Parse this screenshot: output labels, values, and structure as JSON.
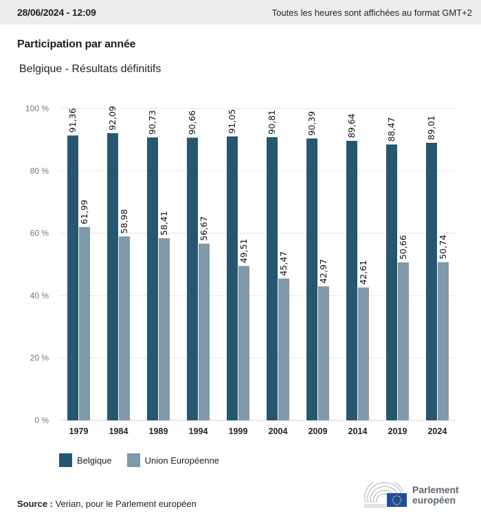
{
  "header": {
    "datetime": "28/06/2024 - 12:09",
    "timezone_note": "Toutes les heures sont affichées au format GMT+2"
  },
  "title": "Participation par année",
  "subtitle": "Belgique - Résultats définitifs",
  "colors": {
    "belgique": "#27566f",
    "ue": "#7f98aa",
    "grid": "#e6e6e6",
    "axis": "#cfd6dc",
    "header_bg": "#eceeed"
  },
  "chart_data": {
    "type": "bar",
    "title": "Participation par année",
    "subtitle": "Belgique - Résultats définitifs",
    "xlabel": "",
    "ylabel": "",
    "ylim": [
      0,
      100
    ],
    "yticks": [
      0,
      20,
      40,
      60,
      80,
      100
    ],
    "ytick_labels": [
      "0 %",
      "20 %",
      "40 %",
      "60 %",
      "80 %",
      "100 %"
    ],
    "grid": true,
    "legend_position": "bottom-left",
    "categories": [
      "1979",
      "1984",
      "1989",
      "1994",
      "1999",
      "2004",
      "2009",
      "2014",
      "2019",
      "2024"
    ],
    "series": [
      {
        "name": "Belgique",
        "color": "#27566f",
        "values": [
          91.36,
          92.09,
          90.73,
          90.66,
          91.05,
          90.81,
          90.39,
          89.64,
          88.47,
          89.01
        ],
        "labels": [
          "91,36",
          "92,09",
          "90,73",
          "90,66",
          "91,05",
          "90,81",
          "90,39",
          "89,64",
          "88,47",
          "89,01"
        ]
      },
      {
        "name": "Union Européenne",
        "color": "#7f98aa",
        "values": [
          61.99,
          58.98,
          58.41,
          56.67,
          49.51,
          45.47,
          42.97,
          42.61,
          50.66,
          50.74
        ],
        "labels": [
          "61,99",
          "58,98",
          "58,41",
          "56,67",
          "49,51",
          "45,47",
          "42,97",
          "42,61",
          "50,66",
          "50,74"
        ]
      }
    ]
  },
  "legend": [
    {
      "label": "Belgique"
    },
    {
      "label": "Union Européenne"
    }
  ],
  "footer": {
    "source_label": "Source :",
    "source_text": " Verian, pour le Parlement européen",
    "logo_line1": "Parlement",
    "logo_line2": "européen"
  }
}
